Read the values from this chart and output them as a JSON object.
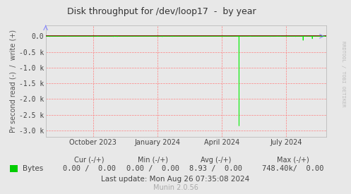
{
  "title": "Disk throughput for /dev/loop17  -  by year",
  "ylabel": "Pr second read (-)  /  write (+)",
  "background_color": "#e8e8e8",
  "plot_bg_color": "#e8e8e8",
  "grid_color_h": "#ff8080",
  "grid_color_v": "#ff8080",
  "border_color": "#aaaaaa",
  "ylim": [
    -3200,
    350
  ],
  "yticks": [
    0,
    -500,
    -1000,
    -1500,
    -2000,
    -2500,
    -3000
  ],
  "ytick_labels": [
    "0.0",
    "-0.5 k",
    "-1.0 k",
    "-1.5 k",
    "-2.0 k",
    "-2.5 k",
    "-3.0 k"
  ],
  "line_color": "#00ee00",
  "zero_line_color": "#880000",
  "legend_label": "Bytes",
  "legend_color": "#00cc00",
  "footer_col1_label": "Cur (-/+)",
  "footer_col2_label": "Min (-/+)",
  "footer_col3_label": "Avg (-/+)",
  "footer_col4_label": "Max (-/+)",
  "footer_bytes_cur": "0.00 /  0.00",
  "footer_bytes_min": "0.00 /  0.00",
  "footer_bytes_avg": "8.93 /  0.00",
  "footer_bytes_max": "748.40k/  0.00",
  "last_update": "Last update: Mon Aug 26 07:35:08 2024",
  "munin_version": "Munin 2.0.56",
  "rrdtool_text": "RRDTOOL / TOBI OETIKER",
  "xaxis_start_ts": 1690329600,
  "xaxis_end_ts": 1724716800,
  "spike_ts": 1714003200,
  "spike_value": -2850,
  "spike2_ts": 1721865600,
  "spike2_value": -130,
  "spike3_ts": 1722988800,
  "spike3_value": -80,
  "xtick_ts": [
    1696118400,
    1704067200,
    1711929600,
    1719792000
  ],
  "xtick_labels": [
    "October 2023",
    "January 2024",
    "April 2024",
    "July 2024"
  ],
  "title_fontsize": 9,
  "tick_fontsize": 7,
  "footer_fontsize": 7,
  "ylabel_fontsize": 7
}
